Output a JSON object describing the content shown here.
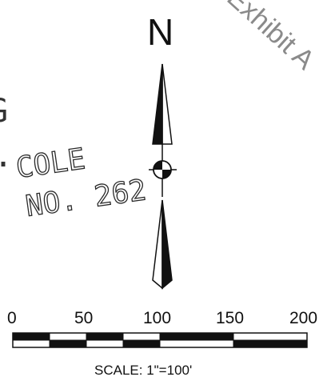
{
  "north_arrow": {
    "letter": "N"
  },
  "stamp": {
    "text": "Exhibit A"
  },
  "label": {
    "line1": "COLE",
    "line2": "NO. 262",
    "left_fragment_top": "G",
    "left_fragment_bottom": "."
  },
  "scale_bar": {
    "ticks": [
      "0",
      "50",
      "100",
      "150",
      "200"
    ],
    "caption": "SCALE: 1\"=100'"
  }
}
